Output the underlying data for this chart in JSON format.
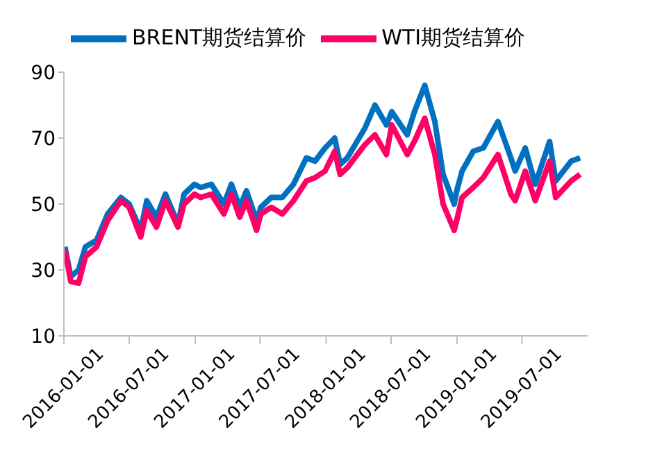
{
  "chart_data": {
    "type": "line",
    "x": [
      "2016-01-04",
      "2016-01-20",
      "2016-02-11",
      "2016-03-01",
      "2016-04-01",
      "2016-05-02",
      "2016-06-08",
      "2016-07-01",
      "2016-08-02",
      "2016-08-19",
      "2016-09-15",
      "2016-10-10",
      "2016-11-14",
      "2016-12-01",
      "2016-12-30",
      "2017-01-16",
      "2017-02-15",
      "2017-03-22",
      "2017-04-12",
      "2017-05-05",
      "2017-05-24",
      "2017-06-21",
      "2017-07-03",
      "2017-08-01",
      "2017-09-01",
      "2017-10-02",
      "2017-11-07",
      "2017-12-01",
      "2017-12-29",
      "2018-01-25",
      "2018-02-09",
      "2018-03-01",
      "2018-04-19",
      "2018-05-17",
      "2018-06-18",
      "2018-07-03",
      "2018-08-15",
      "2018-09-04",
      "2018-10-03",
      "2018-10-31",
      "2018-11-23",
      "2018-12-24",
      "2018-12-31",
      "2019-01-15",
      "2019-02-15",
      "2019-03-15",
      "2019-04-25",
      "2019-05-31",
      "2019-06-12",
      "2019-07-10",
      "2019-08-07",
      "2019-09-16",
      "2019-10-03",
      "2019-11-15",
      "2019-12-10"
    ],
    "series": [
      {
        "name": "BRENT期货结算价",
        "color": "#0070c0",
        "values": [
          37,
          28,
          30,
          37,
          39,
          47,
          52,
          50,
          42,
          51,
          46,
          53,
          44,
          53,
          56,
          55,
          56,
          50,
          56,
          49,
          54,
          45,
          49,
          52,
          52,
          56,
          64,
          63,
          67,
          70,
          62,
          64,
          73,
          80,
          74,
          78,
          71,
          78,
          86,
          75,
          59,
          50,
          54,
          60,
          66,
          67,
          75,
          64,
          60,
          67,
          56,
          69,
          57,
          63,
          64
        ]
      },
      {
        "name": "WTI期货结算价",
        "color": "#ff0066",
        "values": [
          36,
          26.5,
          26,
          34,
          37,
          45,
          51,
          49,
          40,
          48,
          43,
          51,
          43,
          50,
          53,
          52,
          53,
          47,
          53,
          46,
          51,
          42,
          47,
          49,
          47,
          51,
          57,
          58,
          60,
          66,
          59,
          61,
          68,
          71,
          65,
          74,
          65,
          69,
          76,
          65,
          50,
          42,
          45,
          52,
          55,
          58,
          65,
          53,
          51,
          60,
          51,
          63,
          52,
          57,
          59
        ]
      }
    ],
    "xlim": [
      "2016-01-01",
      "2019-12-31"
    ],
    "xticks": [
      "2016-01-01",
      "2016-07-01",
      "2017-01-01",
      "2017-07-01",
      "2018-01-01",
      "2018-07-01",
      "2019-01-01",
      "2019-07-01"
    ],
    "ylim": [
      10,
      90
    ],
    "yticks": [
      10,
      30,
      50,
      70,
      90
    ],
    "grid": false,
    "legend": "top",
    "marker": "none",
    "line_style": "solid"
  }
}
